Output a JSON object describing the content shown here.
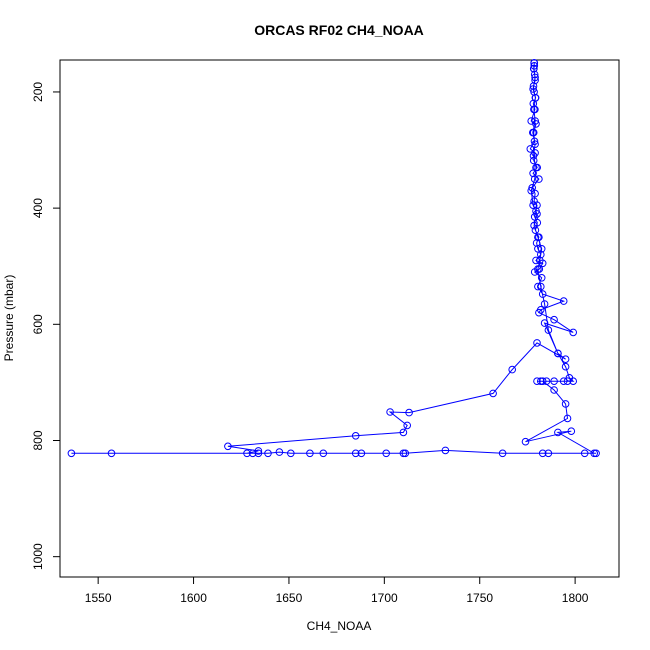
{
  "chart_data": {
    "type": "line",
    "title": "ORCAS RF02 CH4_NOAA",
    "xlabel": "CH4_NOAA",
    "ylabel": "Pressure (mbar)",
    "xlim": [
      1530,
      1823
    ],
    "ylim": [
      1035,
      145
    ],
    "y_reversed": true,
    "x_ticks": [
      1550,
      1600,
      1650,
      1700,
      1750,
      1800
    ],
    "y_ticks": [
      200,
      400,
      600,
      800,
      1000
    ],
    "grid": false,
    "series": [
      {
        "color": "#0000ff",
        "marker": "open-circle",
        "points": [
          [
            1778.5,
            150
          ],
          [
            1778.6,
            155
          ],
          [
            1778.4,
            160
          ],
          [
            1778.8,
            170
          ],
          [
            1779.0,
            180
          ],
          [
            1778.2,
            190
          ],
          [
            1778.5,
            200
          ],
          [
            1779.3,
            210
          ],
          [
            1778.1,
            220
          ],
          [
            1778.9,
            230
          ],
          [
            1777.0,
            250
          ],
          [
            1779.5,
            255
          ],
          [
            1778.3,
            270
          ],
          [
            1778.7,
            285
          ],
          [
            1776.5,
            298
          ],
          [
            1779.0,
            305
          ],
          [
            1778.3,
            318
          ],
          [
            1780.1,
            330
          ],
          [
            1778.0,
            340
          ],
          [
            1781.0,
            350
          ],
          [
            1777.5,
            365
          ],
          [
            1779.0,
            375
          ],
          [
            1778.5,
            388
          ],
          [
            1780.0,
            395
          ],
          [
            1779.5,
            405
          ],
          [
            1778.8,
            415
          ],
          [
            1780.2,
            425
          ],
          [
            1779.2,
            438
          ],
          [
            1781.0,
            450
          ],
          [
            1779.8,
            460
          ],
          [
            1780.5,
            470
          ],
          [
            1782.0,
            480
          ],
          [
            1779.5,
            490
          ],
          [
            1783.0,
            495
          ],
          [
            1781.2,
            505
          ],
          [
            1778.8,
            510
          ],
          [
            1782.5,
            520
          ],
          [
            1780.5,
            535
          ],
          [
            1783.0,
            548
          ],
          [
            1794.0,
            560
          ],
          [
            1782.0,
            575
          ],
          [
            1781.0,
            580
          ],
          [
            1789.0,
            592
          ],
          [
            1799.0,
            614
          ],
          [
            1784.0,
            598
          ],
          [
            1791.0,
            650
          ],
          [
            1795.0,
            660
          ],
          [
            1780.0,
            632
          ],
          [
            1767.0,
            678
          ],
          [
            1757.0,
            719
          ],
          [
            1713.0,
            752
          ],
          [
            1703.0,
            751
          ],
          [
            1712.0,
            774
          ],
          [
            1710.0,
            786
          ],
          [
            1685.0,
            792
          ],
          [
            1618.0,
            810
          ],
          [
            1634.0,
            818
          ],
          [
            1628.0,
            822
          ],
          [
            1536.0,
            822
          ],
          [
            1557.0,
            822
          ],
          [
            1631.0,
            822
          ],
          [
            1634.0,
            822
          ],
          [
            1639.0,
            822
          ],
          [
            1645.0,
            820
          ],
          [
            1651.0,
            822
          ],
          [
            1661.0,
            822
          ],
          [
            1668.0,
            822
          ],
          [
            1685.0,
            822
          ],
          [
            1688.0,
            822
          ],
          [
            1701.0,
            822
          ],
          [
            1710.0,
            822
          ],
          [
            1711.0,
            822
          ],
          [
            1732.0,
            817
          ],
          [
            1762.0,
            822
          ],
          [
            1783.0,
            822
          ],
          [
            1786.0,
            822
          ],
          [
            1805.0,
            822
          ],
          [
            1811.0,
            822
          ],
          [
            1810.0,
            822
          ],
          [
            1791.0,
            786
          ],
          [
            1798.0,
            784
          ],
          [
            1774.0,
            802
          ],
          [
            1796.0,
            762
          ],
          [
            1795.0,
            737
          ],
          [
            1789.0,
            713
          ],
          [
            1783.0,
            698
          ],
          [
            1782.0,
            698
          ],
          [
            1780.0,
            698
          ],
          [
            1785.0,
            698
          ],
          [
            1789.0,
            698
          ],
          [
            1794.0,
            698
          ],
          [
            1796.0,
            698
          ],
          [
            1799.0,
            698
          ],
          [
            1797.0,
            692
          ],
          [
            1795.0,
            673
          ],
          [
            1791.0,
            650
          ],
          [
            1786.0,
            610
          ],
          [
            1784.0,
            565
          ],
          [
            1782.0,
            535
          ],
          [
            1780.5,
            505
          ],
          [
            1781.5,
            490
          ],
          [
            1782.5,
            470
          ],
          [
            1780.5,
            450
          ],
          [
            1778.5,
            430
          ],
          [
            1780.0,
            410
          ],
          [
            1778.0,
            395
          ],
          [
            1777.0,
            370
          ],
          [
            1778.8,
            350
          ],
          [
            1779.5,
            330
          ],
          [
            1778.2,
            310
          ],
          [
            1779.0,
            290
          ],
          [
            1777.8,
            270
          ],
          [
            1779.1,
            250
          ],
          [
            1778.4,
            230
          ],
          [
            1779.2,
            210
          ],
          [
            1778.0,
            195
          ],
          [
            1779.0,
            175
          ],
          [
            1778.3,
            160
          ],
          [
            1778.6,
            150
          ]
        ]
      }
    ]
  }
}
